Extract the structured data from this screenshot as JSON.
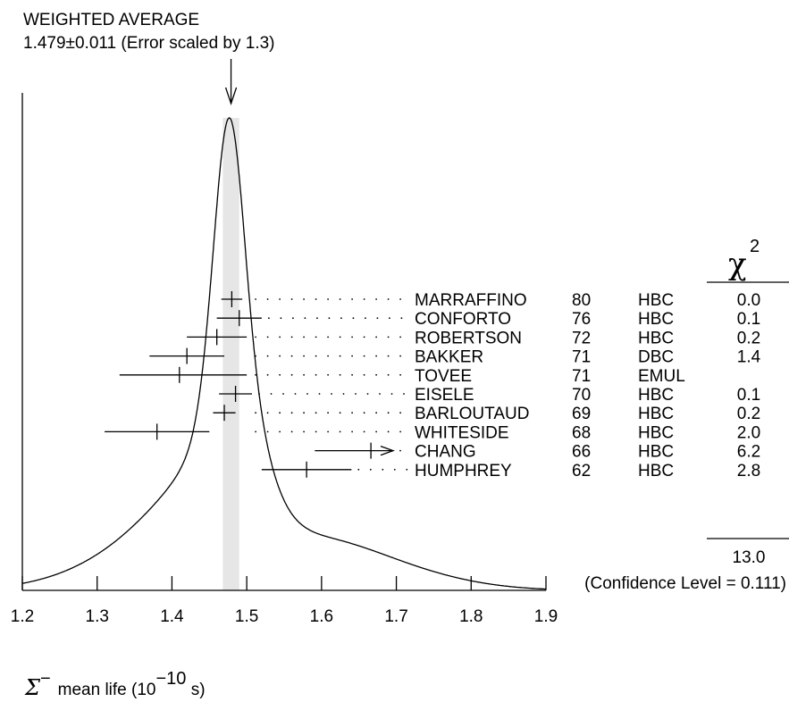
{
  "chart_data": {
    "type": "ideogram",
    "average": {
      "title": "WEIGHTED AVERAGE",
      "value": 1.479,
      "error": 0.011,
      "text": "1.479±0.011 (Error scaled by 1.3)"
    },
    "xaxis": {
      "range": [
        1.2,
        1.9
      ],
      "ticks": [
        1.2,
        1.3,
        1.4,
        1.5,
        1.6,
        1.7,
        1.8,
        1.9
      ],
      "label_main": "mean life (10",
      "label_exp": "−10",
      "label_end": " s)",
      "symbol": "Σ",
      "symbol_sup": "−"
    },
    "chi2_header": "χ",
    "chi2_header_sup": "2",
    "measurements": [
      {
        "name": "MARRAFFINO",
        "year": "80",
        "tech": "HBC",
        "value": 1.48,
        "err_lo": 0.014,
        "err_hi": 0.014,
        "chi2": "0.0"
      },
      {
        "name": "CONFORTO",
        "year": "76",
        "tech": "HBC",
        "value": 1.49,
        "err_lo": 0.03,
        "err_hi": 0.03,
        "chi2": "0.1"
      },
      {
        "name": "ROBERTSON",
        "year": "72",
        "tech": "HBC",
        "value": 1.46,
        "err_lo": 0.04,
        "err_hi": 0.04,
        "chi2": "0.2"
      },
      {
        "name": "BAKKER",
        "year": "71",
        "tech": "DBC",
        "value": 1.42,
        "err_lo": 0.05,
        "err_hi": 0.05,
        "chi2": "1.4"
      },
      {
        "name": "TOVEE",
        "year": "71",
        "tech": "EMUL",
        "value": 1.41,
        "err_lo": 0.08,
        "err_hi": 0.09,
        "chi2": ""
      },
      {
        "name": "EISELE",
        "year": "70",
        "tech": "HBC",
        "value": 1.485,
        "err_lo": 0.022,
        "err_hi": 0.022,
        "chi2": "0.1"
      },
      {
        "name": "BARLOUTAUD",
        "year": "69",
        "tech": "HBC",
        "value": 1.47,
        "err_lo": 0.015,
        "err_hi": 0.015,
        "chi2": "0.2"
      },
      {
        "name": "WHITESIDE",
        "year": "68",
        "tech": "HBC",
        "value": 1.38,
        "err_lo": 0.07,
        "err_hi": 0.07,
        "chi2": "2.0"
      },
      {
        "name": "CHANG",
        "year": "66",
        "tech": "HBC",
        "value": 1.666,
        "err_lo": 0.075,
        "err_hi": 0.075,
        "chi2": "6.2"
      },
      {
        "name": "HUMPHREY",
        "year": "62",
        "tech": "HBC",
        "value": 1.58,
        "err_lo": 0.06,
        "err_hi": 0.06,
        "chi2": "2.8"
      }
    ],
    "chi2_total": "13.0",
    "confidence_text": "(Confidence Level = 0.111)"
  }
}
